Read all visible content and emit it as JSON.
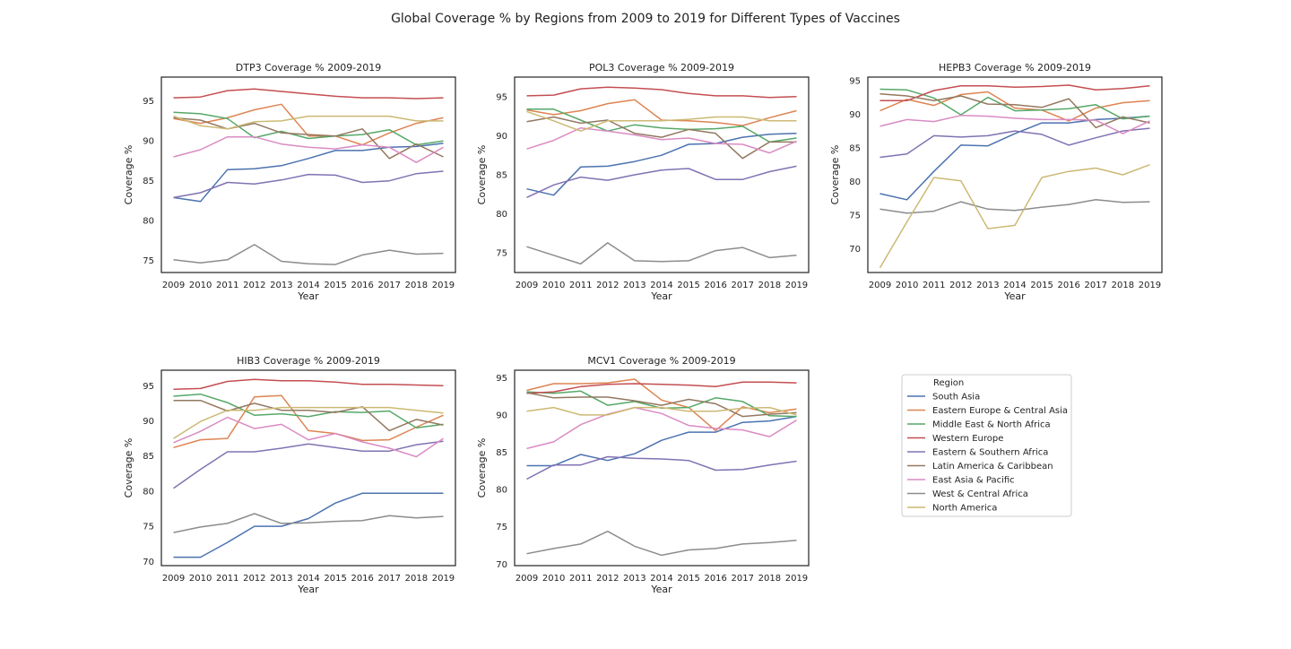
{
  "figure_title": "Global Coverage % by Regions from 2009 to 2019 for Different Types of Vaccines",
  "legend": {
    "title": "Region",
    "placement": "empty sixth panel (bottom-right)",
    "entries": [
      {
        "name": "South Asia",
        "color": "#4c72b0"
      },
      {
        "name": "Eastern Europe & Central Asia",
        "color": "#dd8452"
      },
      {
        "name": "Middle East & North Africa",
        "color": "#55a868"
      },
      {
        "name": "Western Europe",
        "color": "#c44e52"
      },
      {
        "name": "Eastern & Southern Africa",
        "color": "#8172b3"
      },
      {
        "name": "Latin America & Caribbean",
        "color": "#937860"
      },
      {
        "name": "East Asia & Pacific",
        "color": "#da8bc3"
      },
      {
        "name": "West & Central Africa",
        "color": "#8c8c8c"
      },
      {
        "name": "North America",
        "color": "#ccb974"
      }
    ]
  },
  "chart_data": [
    {
      "type": "line",
      "title": "DTP3 Coverage % 2009-2019",
      "xlabel": "Year",
      "ylabel": "Coverage %",
      "x": [
        2009,
        2010,
        2011,
        2012,
        2013,
        2014,
        2015,
        2016,
        2017,
        2018,
        2019
      ],
      "xlim": [
        2008.55,
        2019.45
      ],
      "ylim": [
        73.5,
        98.0
      ],
      "yticks": [
        75,
        80,
        85,
        90,
        95
      ],
      "grid": false,
      "series": [
        {
          "name": "South Asia",
          "values": [
            82.9,
            82.4,
            86.4,
            86.5,
            86.9,
            87.8,
            88.8,
            88.8,
            89.2,
            89.3,
            89.7
          ]
        },
        {
          "name": "Eastern Europe & Central Asia",
          "values": [
            92.8,
            92.2,
            92.9,
            93.9,
            94.6,
            90.6,
            90.6,
            89.5,
            91.0,
            92.2,
            92.9
          ]
        },
        {
          "name": "Middle East & North Africa",
          "values": [
            93.6,
            93.4,
            92.8,
            90.4,
            91.2,
            90.3,
            90.6,
            90.8,
            91.4,
            89.5,
            90.0
          ]
        },
        {
          "name": "Western Europe",
          "values": [
            95.4,
            95.5,
            96.3,
            96.5,
            96.2,
            95.9,
            95.6,
            95.4,
            95.4,
            95.3,
            95.4
          ]
        },
        {
          "name": "Eastern & Southern Africa",
          "values": [
            82.9,
            83.5,
            84.8,
            84.6,
            85.1,
            85.8,
            85.7,
            84.8,
            85.0,
            85.9,
            86.2
          ]
        },
        {
          "name": "Latin America & Caribbean",
          "values": [
            92.9,
            92.6,
            91.5,
            92.2,
            91.0,
            90.8,
            90.6,
            91.5,
            87.8,
            89.6,
            88.0
          ]
        },
        {
          "name": "East Asia & Pacific",
          "values": [
            88.0,
            88.9,
            90.5,
            90.5,
            89.6,
            89.2,
            89.0,
            89.5,
            89.2,
            87.3,
            89.2
          ]
        },
        {
          "name": "West & Central Africa",
          "values": [
            75.1,
            74.7,
            75.1,
            77.0,
            74.9,
            74.6,
            74.5,
            75.7,
            76.3,
            75.8,
            75.9
          ]
        },
        {
          "name": "North America",
          "values": [
            93.1,
            91.9,
            91.5,
            92.4,
            92.5,
            93.1,
            93.1,
            93.1,
            93.1,
            92.5,
            92.5
          ]
        }
      ]
    },
    {
      "type": "line",
      "title": "POL3 Coverage % 2009-2019",
      "xlabel": "Year",
      "ylabel": "Coverage %",
      "x": [
        2009,
        2010,
        2011,
        2012,
        2013,
        2014,
        2015,
        2016,
        2017,
        2018,
        2019
      ],
      "xlim": [
        2008.55,
        2019.45
      ],
      "ylim": [
        72.5,
        97.5
      ],
      "yticks": [
        75,
        80,
        85,
        90,
        95
      ],
      "grid": false,
      "series": [
        {
          "name": "South Asia",
          "values": [
            83.2,
            82.4,
            86.0,
            86.1,
            86.7,
            87.5,
            88.9,
            89.0,
            89.8,
            90.2,
            90.3
          ]
        },
        {
          "name": "Eastern Europe & Central Asia",
          "values": [
            93.3,
            92.7,
            93.2,
            94.1,
            94.6,
            92.0,
            91.9,
            91.7,
            91.3,
            92.3,
            93.2
          ]
        },
        {
          "name": "Middle East & North Africa",
          "values": [
            93.4,
            93.4,
            92.0,
            90.6,
            91.4,
            91.0,
            90.8,
            90.9,
            91.2,
            89.2,
            89.7
          ]
        },
        {
          "name": "Western Europe",
          "values": [
            95.1,
            95.2,
            96.0,
            96.2,
            96.1,
            95.9,
            95.4,
            95.1,
            95.1,
            94.9,
            95.0
          ]
        },
        {
          "name": "Eastern & Southern Africa",
          "values": [
            82.1,
            83.7,
            84.7,
            84.3,
            85.0,
            85.6,
            85.8,
            84.4,
            84.4,
            85.4,
            86.1
          ]
        },
        {
          "name": "Latin America & Caribbean",
          "values": [
            91.8,
            92.4,
            91.6,
            92.0,
            90.3,
            89.8,
            90.8,
            90.3,
            87.1,
            89.2,
            89.2
          ]
        },
        {
          "name": "East Asia & Pacific",
          "values": [
            88.3,
            89.4,
            91.0,
            90.6,
            90.1,
            89.5,
            89.7,
            89.0,
            88.9,
            87.8,
            89.3
          ]
        },
        {
          "name": "West & Central Africa",
          "values": [
            75.8,
            74.7,
            73.6,
            76.3,
            74.0,
            73.9,
            74.0,
            75.3,
            75.7,
            74.4,
            74.7
          ]
        },
        {
          "name": "North America",
          "values": [
            93.1,
            91.9,
            90.6,
            91.9,
            91.9,
            91.9,
            92.1,
            92.4,
            92.4,
            91.9,
            91.9
          ]
        }
      ]
    },
    {
      "type": "line",
      "title": "HEPB3 Coverage % 2009-2019",
      "xlabel": "Year",
      "ylabel": "Coverage %",
      "x": [
        2009,
        2010,
        2011,
        2012,
        2013,
        2014,
        2015,
        2016,
        2017,
        2018,
        2019
      ],
      "xlim": [
        2008.55,
        2019.45
      ],
      "ylim": [
        66.5,
        95.5
      ],
      "yticks": [
        70,
        75,
        80,
        85,
        90,
        95
      ],
      "grid": false,
      "series": [
        {
          "name": "South Asia",
          "values": [
            78.2,
            77.3,
            81.5,
            85.4,
            85.3,
            87.1,
            88.7,
            88.7,
            89.2,
            89.4,
            89.7
          ]
        },
        {
          "name": "Eastern Europe & Central Asia",
          "values": [
            90.5,
            92.2,
            91.3,
            92.9,
            93.3,
            90.9,
            90.6,
            89.0,
            90.9,
            91.7,
            92.0
          ]
        },
        {
          "name": "Middle East & North Africa",
          "values": [
            93.7,
            93.6,
            92.4,
            89.9,
            92.5,
            90.5,
            90.6,
            90.8,
            91.4,
            89.3,
            89.7
          ]
        },
        {
          "name": "Western Europe",
          "values": [
            92.0,
            92.0,
            93.5,
            94.2,
            94.2,
            94.0,
            94.1,
            94.3,
            93.6,
            93.8,
            94.2
          ]
        },
        {
          "name": "Eastern & Southern Africa",
          "values": [
            83.6,
            84.1,
            86.8,
            86.6,
            86.8,
            87.5,
            87.0,
            85.4,
            86.5,
            87.5,
            87.9
          ]
        },
        {
          "name": "Latin America & Caribbean",
          "values": [
            93.0,
            92.7,
            92.0,
            92.7,
            91.5,
            91.4,
            91.0,
            92.3,
            88.0,
            89.6,
            88.7
          ]
        },
        {
          "name": "East Asia & Pacific",
          "values": [
            88.2,
            89.2,
            88.9,
            89.8,
            89.7,
            89.4,
            89.2,
            89.2,
            89.1,
            87.1,
            89.0
          ]
        },
        {
          "name": "West & Central Africa",
          "values": [
            75.9,
            75.3,
            75.6,
            77.0,
            75.9,
            75.7,
            76.2,
            76.6,
            77.3,
            76.9,
            77.0
          ]
        },
        {
          "name": "North America",
          "values": [
            67.2,
            74.0,
            80.6,
            80.1,
            73.0,
            73.5,
            80.6,
            81.5,
            82.0,
            81.0,
            82.5
          ]
        }
      ]
    },
    {
      "type": "line",
      "title": "HIB3 Coverage % 2009-2019",
      "xlabel": "Year",
      "ylabel": "Coverage %",
      "x": [
        2009,
        2010,
        2011,
        2012,
        2013,
        2014,
        2015,
        2016,
        2017,
        2018,
        2019
      ],
      "xlim": [
        2008.55,
        2019.45
      ],
      "ylim": [
        69.4,
        97.2
      ],
      "yticks": [
        70,
        75,
        80,
        85,
        90,
        95
      ],
      "grid": false,
      "series": [
        {
          "name": "South Asia",
          "values": [
            70.6,
            70.6,
            72.7,
            75.0,
            75.0,
            76.1,
            78.3,
            79.7,
            79.7,
            79.7,
            79.7
          ]
        },
        {
          "name": "Eastern Europe & Central Asia",
          "values": [
            86.2,
            87.3,
            87.5,
            93.4,
            93.6,
            88.6,
            88.2,
            87.2,
            87.3,
            89.1,
            90.8
          ]
        },
        {
          "name": "Middle East & North Africa",
          "values": [
            93.5,
            93.8,
            92.6,
            90.8,
            91.0,
            90.6,
            91.3,
            91.2,
            91.4,
            89.0,
            89.5
          ]
        },
        {
          "name": "Western Europe",
          "values": [
            94.5,
            94.6,
            95.6,
            95.9,
            95.7,
            95.7,
            95.5,
            95.2,
            95.2,
            95.1,
            95.0
          ]
        },
        {
          "name": "Eastern & Southern Africa",
          "values": [
            80.4,
            83.1,
            85.6,
            85.6,
            86.1,
            86.7,
            86.2,
            85.7,
            85.7,
            86.6,
            87.1
          ]
        },
        {
          "name": "Latin America & Caribbean",
          "values": [
            92.9,
            92.9,
            91.4,
            92.5,
            91.5,
            91.5,
            91.2,
            92.0,
            88.6,
            90.2,
            89.4
          ]
        },
        {
          "name": "East Asia & Pacific",
          "values": [
            86.9,
            88.5,
            90.5,
            88.9,
            89.5,
            87.3,
            88.2,
            87.0,
            86.1,
            84.9,
            87.5
          ]
        },
        {
          "name": "West & Central Africa",
          "values": [
            74.1,
            74.9,
            75.4,
            76.8,
            75.4,
            75.5,
            75.7,
            75.8,
            76.5,
            76.2,
            76.4
          ]
        },
        {
          "name": "North America",
          "values": [
            87.5,
            89.9,
            91.5,
            91.5,
            91.9,
            91.9,
            91.9,
            91.9,
            91.9,
            91.5,
            91.1
          ]
        }
      ]
    },
    {
      "type": "line",
      "title": "MCV1 Coverage % 2009-2019",
      "xlabel": "Year",
      "ylabel": "Coverage %",
      "x": [
        2009,
        2010,
        2011,
        2012,
        2013,
        2014,
        2015,
        2016,
        2017,
        2018,
        2019
      ],
      "xlim": [
        2008.55,
        2019.45
      ],
      "ylim": [
        69.8,
        96.0
      ],
      "yticks": [
        70,
        75,
        80,
        85,
        90,
        95
      ],
      "grid": false,
      "series": [
        {
          "name": "South Asia",
          "values": [
            83.2,
            83.2,
            84.7,
            83.9,
            84.8,
            86.6,
            87.7,
            87.7,
            89.0,
            89.2,
            89.8
          ]
        },
        {
          "name": "Eastern Europe & Central Asia",
          "values": [
            93.3,
            94.2,
            94.2,
            94.3,
            94.8,
            92.0,
            91.0,
            87.9,
            91.1,
            90.3,
            90.8
          ]
        },
        {
          "name": "Middle East & North Africa",
          "values": [
            93.1,
            92.9,
            93.2,
            91.3,
            91.8,
            90.9,
            91.0,
            92.3,
            91.8,
            89.9,
            89.8
          ]
        },
        {
          "name": "Western Europe",
          "values": [
            92.9,
            93.1,
            93.8,
            94.1,
            94.2,
            94.1,
            94.0,
            93.8,
            94.4,
            94.4,
            94.3
          ]
        },
        {
          "name": "Eastern & Southern Africa",
          "values": [
            81.4,
            83.3,
            83.3,
            84.4,
            84.2,
            84.1,
            83.9,
            82.6,
            82.7,
            83.3,
            83.8
          ]
        },
        {
          "name": "Latin America & Caribbean",
          "values": [
            93.0,
            92.3,
            92.4,
            92.4,
            91.9,
            91.3,
            92.1,
            91.5,
            89.8,
            90.1,
            90.3
          ]
        },
        {
          "name": "East Asia & Pacific",
          "values": [
            85.5,
            86.4,
            88.7,
            90.1,
            91.0,
            90.2,
            88.6,
            88.2,
            88.0,
            87.1,
            89.3
          ]
        },
        {
          "name": "West & Central Africa",
          "values": [
            71.4,
            72.1,
            72.7,
            74.4,
            72.4,
            71.2,
            71.9,
            72.1,
            72.7,
            72.9,
            73.2
          ]
        },
        {
          "name": "North America",
          "values": [
            90.5,
            91.0,
            90.0,
            90.0,
            91.0,
            91.0,
            90.5,
            90.5,
            90.9,
            91.0,
            90.0
          ]
        }
      ]
    }
  ]
}
